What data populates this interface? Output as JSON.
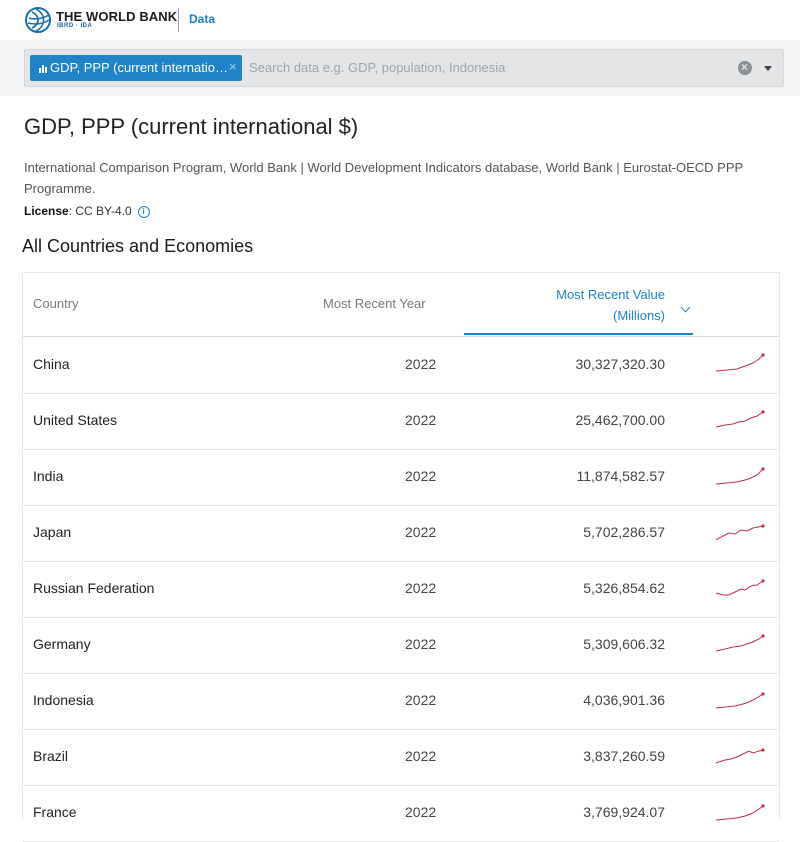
{
  "brand": {
    "name": "THE WORLD BANK",
    "sub": "IBRD · IDA",
    "nav": "Data"
  },
  "search": {
    "chip_label": "GDP, PPP (current international $)",
    "chip_remove": "×",
    "placeholder": "Search data e.g. GDP, population, Indonesia"
  },
  "indicator": {
    "title": "GDP, PPP (current international $)",
    "source": "International Comparison Program, World Bank | World Development Indicators database, World Bank | Eurostat-OECD PPP Programme.",
    "license_label": "License",
    "license_value": ": CC BY-4.0",
    "section_title": "All Countries and Economies"
  },
  "table": {
    "headers": {
      "country": "Country",
      "year": "Most Recent Year",
      "value_line1": "Most Recent Value",
      "value_line2": "(Millions)"
    },
    "rows": [
      {
        "country": "China",
        "year": "2022",
        "value": "30,327,320.30"
      },
      {
        "country": "United States",
        "year": "2022",
        "value": "25,462,700.00"
      },
      {
        "country": "India",
        "year": "2022",
        "value": "11,874,582.57"
      },
      {
        "country": "Japan",
        "year": "2022",
        "value": "5,702,286.57"
      },
      {
        "country": "Russian Federation",
        "year": "2022",
        "value": "5,326,854.62"
      },
      {
        "country": "Germany",
        "year": "2022",
        "value": "5,309,606.32"
      },
      {
        "country": "Indonesia",
        "year": "2022",
        "value": "4,036,901.36"
      },
      {
        "country": "Brazil",
        "year": "2022",
        "value": "3,837,260.59"
      },
      {
        "country": "France",
        "year": "2022",
        "value": "3,769,924.07"
      }
    ]
  },
  "colors": {
    "accent": "#1f83c7",
    "sparkline": "#c0304a"
  }
}
